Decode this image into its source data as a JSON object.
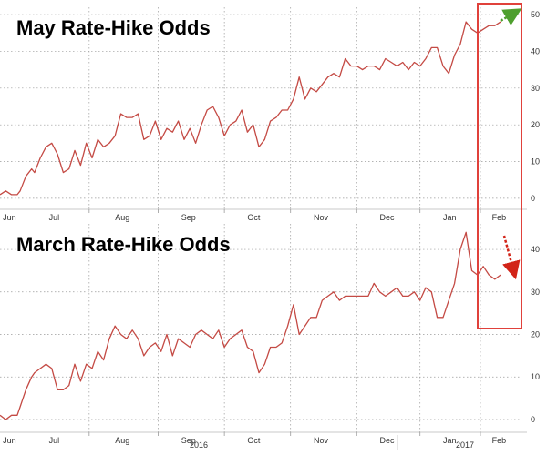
{
  "colors": {
    "series": "#c44a44",
    "highlight_box": "#e0413b",
    "arrow_up": "#4e9f2e",
    "arrow_down": "#d22418"
  },
  "x_axis": {
    "month_labels": [
      "Jun",
      "Jul",
      "Aug",
      "Sep",
      "Oct",
      "Nov",
      "Dec",
      "Jan",
      "Feb"
    ],
    "year_labels": [
      "2016",
      "2017"
    ]
  },
  "annotations": {
    "highlight": "Feb 2017",
    "top_arrow": "up",
    "bottom_arrow": "down"
  },
  "chart_data": [
    {
      "type": "line",
      "title": "May Rate-Hike Odds",
      "xlabel": "",
      "ylabel": "",
      "xlim": [
        0,
        9.0
      ],
      "ylim": [
        -3,
        52
      ],
      "y_ticks": [
        0,
        10,
        20,
        30,
        40,
        50
      ],
      "y_axis": "right",
      "grid": true,
      "series": [
        {
          "x": [
            0.0,
            0.1,
            0.2,
            0.3,
            0.35,
            0.45,
            0.55,
            0.6,
            0.7,
            0.8,
            0.9,
            1.0,
            1.1,
            1.2,
            1.3,
            1.4,
            1.5,
            1.6,
            1.7,
            1.8,
            1.9,
            2.0,
            2.1,
            2.2,
            2.3,
            2.4,
            2.5,
            2.6,
            2.7,
            2.8,
            2.9,
            3.0,
            3.1,
            3.2,
            3.3,
            3.4,
            3.5,
            3.6,
            3.7,
            3.8,
            3.9,
            4.0,
            4.1,
            4.2,
            4.3,
            4.4,
            4.5,
            4.6,
            4.7,
            4.8,
            4.9,
            5.0,
            5.1,
            5.2,
            5.3,
            5.4,
            5.5,
            5.6,
            5.7,
            5.8,
            5.9,
            6.0,
            6.1,
            6.2,
            6.3,
            6.4,
            6.5,
            6.6,
            6.7,
            6.8,
            6.9,
            7.0,
            7.1,
            7.2,
            7.3,
            7.4,
            7.5,
            7.6,
            7.7,
            7.8,
            7.9,
            8.0,
            8.1,
            8.2,
            8.3,
            8.4,
            8.5,
            8.6,
            8.7
          ],
          "y": [
            1,
            2,
            1,
            1,
            2,
            6,
            8,
            7,
            11,
            14,
            15,
            12,
            7,
            8,
            13,
            9,
            15,
            11,
            16,
            14,
            15,
            17,
            23,
            22,
            22,
            23,
            16,
            17,
            21,
            16,
            19,
            18,
            21,
            16,
            19,
            15,
            20,
            24,
            25,
            22,
            17,
            20,
            21,
            24,
            18,
            20,
            14,
            16,
            21,
            22,
            24,
            24,
            27,
            33,
            27,
            30,
            29,
            31,
            33,
            34,
            33,
            38,
            36,
            36,
            35,
            36,
            36,
            35,
            38,
            37,
            36,
            37,
            35,
            37,
            36,
            38,
            41,
            41,
            36,
            34,
            39,
            42,
            48,
            46,
            45,
            46,
            47,
            47,
            48
          ]
        }
      ]
    },
    {
      "type": "line",
      "title": "March Rate-Hike Odds",
      "xlabel": "",
      "ylabel": "",
      "xlim": [
        0,
        9.0
      ],
      "ylim": [
        -3,
        46
      ],
      "y_ticks": [
        0,
        10,
        20,
        30,
        40
      ],
      "y_axis": "right",
      "grid": true,
      "series": [
        {
          "x": [
            0.0,
            0.1,
            0.2,
            0.3,
            0.35,
            0.45,
            0.55,
            0.6,
            0.7,
            0.8,
            0.9,
            1.0,
            1.1,
            1.2,
            1.3,
            1.4,
            1.5,
            1.6,
            1.7,
            1.8,
            1.9,
            2.0,
            2.1,
            2.2,
            2.3,
            2.4,
            2.5,
            2.6,
            2.7,
            2.8,
            2.9,
            3.0,
            3.1,
            3.2,
            3.3,
            3.4,
            3.5,
            3.6,
            3.7,
            3.8,
            3.9,
            4.0,
            4.1,
            4.2,
            4.3,
            4.4,
            4.5,
            4.6,
            4.7,
            4.8,
            4.9,
            5.0,
            5.1,
            5.2,
            5.3,
            5.4,
            5.5,
            5.6,
            5.7,
            5.8,
            5.9,
            6.0,
            6.1,
            6.2,
            6.3,
            6.4,
            6.5,
            6.6,
            6.7,
            6.8,
            6.9,
            7.0,
            7.1,
            7.2,
            7.3,
            7.4,
            7.5,
            7.6,
            7.7,
            7.8,
            7.9,
            8.0,
            8.1,
            8.2,
            8.3,
            8.4,
            8.5,
            8.6,
            8.7
          ],
          "y": [
            1,
            0,
            1,
            1,
            3,
            7,
            10,
            11,
            12,
            13,
            12,
            7,
            7,
            8,
            13,
            9,
            13,
            12,
            16,
            14,
            19,
            22,
            20,
            19,
            21,
            19,
            15,
            17,
            18,
            16,
            20,
            15,
            19,
            18,
            17,
            20,
            21,
            20,
            19,
            21,
            17,
            19,
            20,
            21,
            17,
            16,
            11,
            13,
            17,
            17,
            18,
            22,
            27,
            20,
            22,
            24,
            24,
            28,
            29,
            30,
            28,
            29,
            29,
            29,
            29,
            29,
            32,
            30,
            29,
            30,
            31,
            29,
            29,
            30,
            28,
            31,
            30,
            24,
            24,
            28,
            32,
            40,
            44,
            35,
            34,
            36,
            34,
            33,
            34
          ]
        }
      ]
    }
  ]
}
